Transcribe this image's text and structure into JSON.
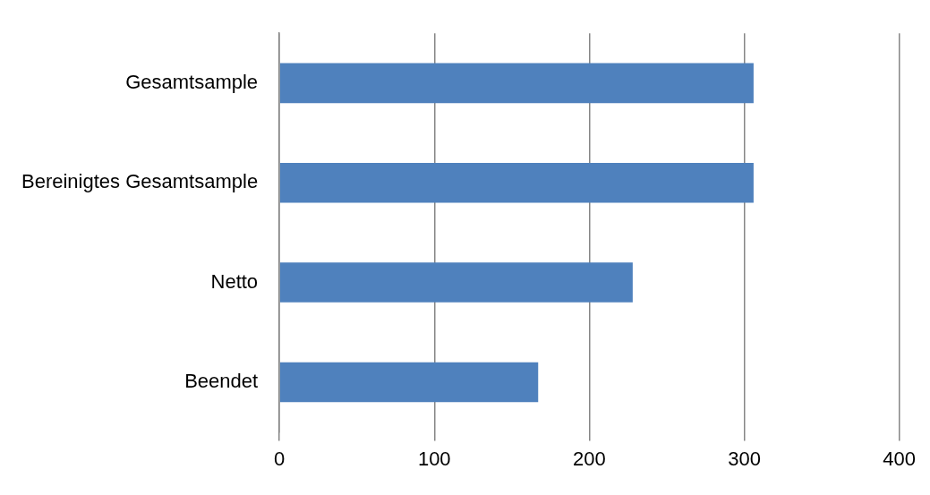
{
  "chart_data": {
    "type": "bar",
    "orientation": "horizontal",
    "categories": [
      "Gesamtsample",
      "Bereinigtes Gesamtsample",
      "Netto",
      "Beendet"
    ],
    "values": [
      306,
      306,
      228,
      167
    ],
    "color": "#4f81bd",
    "xlim": [
      0,
      400
    ],
    "xticks": [
      0,
      100,
      200,
      300,
      400
    ],
    "grid": "x",
    "legend": false
  }
}
